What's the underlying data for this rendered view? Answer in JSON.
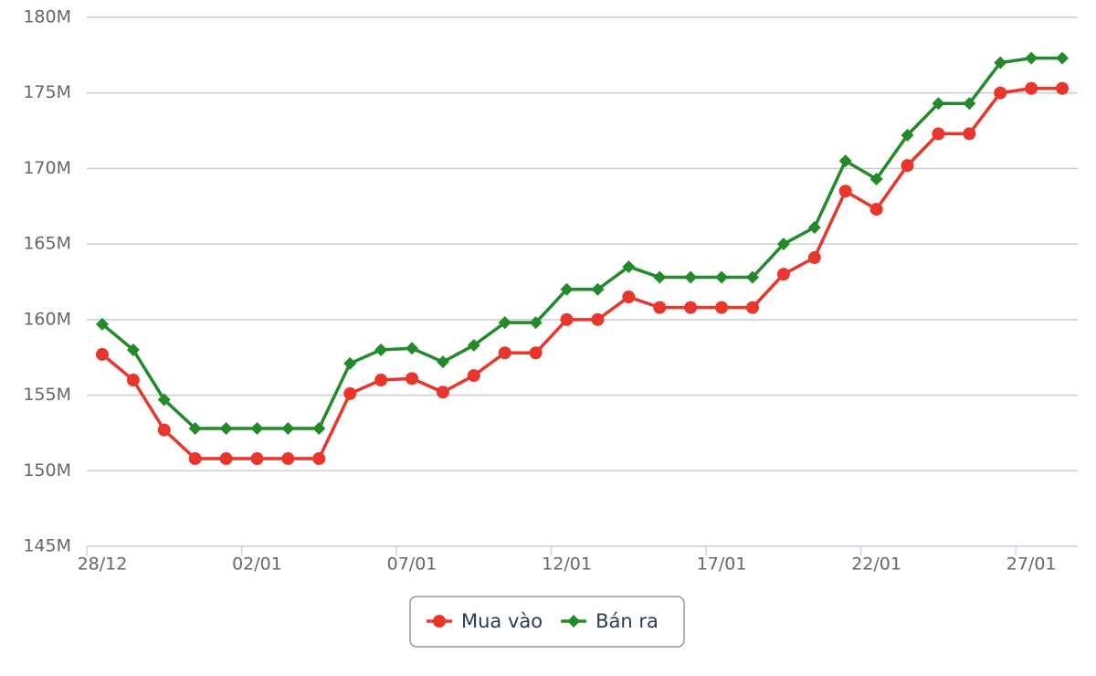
{
  "chart_data": {
    "type": "line",
    "categories": [
      "28/12",
      null,
      null,
      null,
      null,
      "02/01",
      null,
      null,
      null,
      null,
      "07/01",
      null,
      null,
      null,
      null,
      "12/01",
      null,
      null,
      null,
      null,
      "17/01",
      null,
      null,
      null,
      null,
      "22/01",
      null,
      null,
      null,
      null,
      "27/01",
      null
    ],
    "series": [
      {
        "name": "Mua vào",
        "color": "#e8362d",
        "marker": "circle",
        "values": [
          157700000,
          156000000,
          152700000,
          150800000,
          150800000,
          150800000,
          150800000,
          150800000,
          155100000,
          156000000,
          156100000,
          155200000,
          156300000,
          157800000,
          157800000,
          160000000,
          160000000,
          161500000,
          160800000,
          160800000,
          160800000,
          160800000,
          163000000,
          164100000,
          168500000,
          167300000,
          170200000,
          172300000,
          172300000,
          175000000,
          175300000,
          175300000
        ]
      },
      {
        "name": "Bán ra",
        "color": "#238a2c",
        "marker": "diamond",
        "values": [
          159700000,
          158000000,
          154700000,
          152800000,
          152800000,
          152800000,
          152800000,
          152800000,
          157100000,
          158000000,
          158100000,
          157200000,
          158300000,
          159800000,
          159800000,
          162000000,
          162000000,
          163500000,
          162800000,
          162800000,
          162800000,
          162800000,
          165000000,
          166100000,
          170500000,
          169300000,
          172200000,
          174300000,
          174300000,
          177000000,
          177300000,
          177300000
        ]
      }
    ],
    "ylim": [
      145000000,
      180000000
    ],
    "yticks": [
      {
        "value": 145000000,
        "label": "145M"
      },
      {
        "value": 150000000,
        "label": "150M"
      },
      {
        "value": 155000000,
        "label": "155M"
      },
      {
        "value": 160000000,
        "label": "160M"
      },
      {
        "value": 165000000,
        "label": "165M"
      },
      {
        "value": 170000000,
        "label": "170M"
      },
      {
        "value": 175000000,
        "label": "175M"
      },
      {
        "value": 180000000,
        "label": "180M"
      }
    ],
    "grid": true,
    "legend": "bottom"
  }
}
